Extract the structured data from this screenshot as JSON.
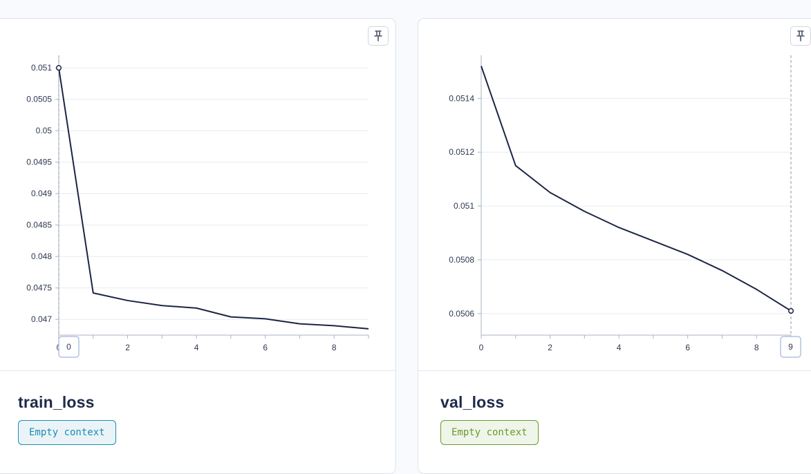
{
  "charts": [
    {
      "metric_name": "train_loss",
      "badge_label": "Empty context",
      "badge_color": "#1a8cb0",
      "badge_bg": "#eaf4f8",
      "pin_icon": "pin-icon",
      "cursor_x_label": "0"
    },
    {
      "metric_name": "val_loss",
      "badge_label": "Empty context",
      "badge_color": "#6a9a30",
      "badge_bg": "#eff5e8",
      "pin_icon": "pin-icon",
      "cursor_x_label": "9"
    }
  ],
  "chart_data": [
    {
      "type": "line",
      "title": "",
      "xlabel": "",
      "ylabel": "",
      "x": [
        0,
        1,
        2,
        3,
        4,
        5,
        6,
        7,
        8,
        9
      ],
      "series": [
        {
          "values": [
            0.051,
            0.04742,
            0.0473,
            0.04722,
            0.04718,
            0.04704,
            0.04701,
            0.04693,
            0.0469,
            0.04685
          ],
          "color": "#1c2445"
        }
      ],
      "xlim": [
        0,
        9
      ],
      "ylim": [
        0.04675,
        0.0512
      ],
      "xticks": [
        "0",
        "2",
        "4",
        "6",
        "8"
      ],
      "yticks": [
        "0.051",
        "0.0505",
        "0.05",
        "0.0495",
        "0.049",
        "0.0485",
        "0.048",
        "0.0475",
        "0.047"
      ],
      "grid": true,
      "highlight_index": 0
    },
    {
      "type": "line",
      "title": "",
      "xlabel": "",
      "ylabel": "",
      "x": [
        0,
        1,
        2,
        3,
        4,
        5,
        6,
        7,
        8,
        9
      ],
      "series": [
        {
          "values": [
            0.05152,
            0.05115,
            0.05105,
            0.05098,
            0.05092,
            0.05087,
            0.05082,
            0.05076,
            0.05069,
            0.05061
          ],
          "color": "#1c2445"
        }
      ],
      "xlim": [
        0,
        9
      ],
      "ylim": [
        0.05052,
        0.05156
      ],
      "xticks": [
        "0",
        "2",
        "4",
        "6",
        "8"
      ],
      "yticks": [
        "0.0514",
        "0.0512",
        "0.051",
        "0.0508",
        "0.0506"
      ],
      "grid": true,
      "highlight_index": 9
    }
  ]
}
